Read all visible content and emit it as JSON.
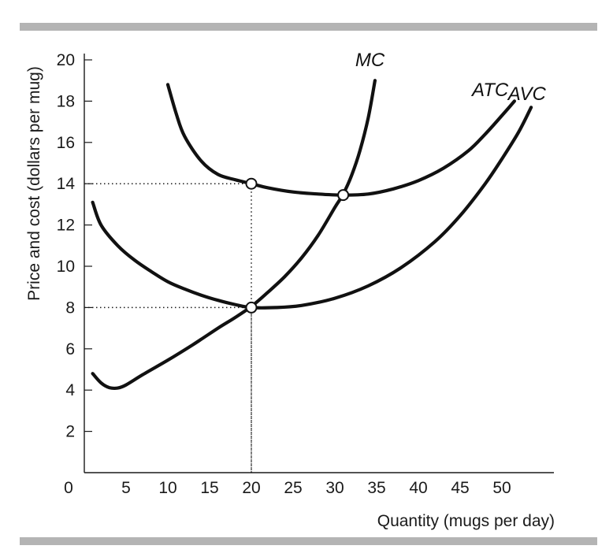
{
  "chart_data": {
    "type": "line",
    "xlabel": "Quantity (mugs per day)",
    "ylabel": "Price and cost (dollars per mug)",
    "origin_label": "0",
    "xlim": [
      0,
      56
    ],
    "ylim": [
      0,
      20
    ],
    "x_ticks": [
      {
        "value": 5,
        "label": "5"
      },
      {
        "value": 10,
        "label": "10"
      },
      {
        "value": 15,
        "label": "15"
      },
      {
        "value": 20,
        "label": "20"
      },
      {
        "value": 25,
        "label": "25"
      },
      {
        "value": 30,
        "label": "30"
      },
      {
        "value": 35,
        "label": "35"
      },
      {
        "value": 40,
        "label": "40"
      },
      {
        "value": 45,
        "label": "45"
      },
      {
        "value": 50,
        "label": "50"
      }
    ],
    "y_ticks": [
      {
        "value": 2,
        "label": "2"
      },
      {
        "value": 4,
        "label": "4"
      },
      {
        "value": 6,
        "label": "6"
      },
      {
        "value": 8,
        "label": "8"
      },
      {
        "value": 10,
        "label": "10"
      },
      {
        "value": 12,
        "label": "12"
      },
      {
        "value": 14,
        "label": "14"
      },
      {
        "value": 16,
        "label": "16"
      },
      {
        "value": 18,
        "label": "18"
      },
      {
        "value": 20,
        "label": "20"
      }
    ],
    "series": [
      {
        "name": "MC",
        "x": [
          1,
          2,
          3,
          4,
          5,
          7,
          10,
          13,
          16,
          18,
          20,
          22,
          24,
          26,
          28,
          30,
          31,
          32,
          33,
          34,
          34.8
        ],
        "y": [
          4.8,
          4.35,
          4.12,
          4.1,
          4.25,
          4.75,
          5.45,
          6.2,
          7.0,
          7.5,
          8.05,
          8.75,
          9.5,
          10.4,
          11.5,
          12.85,
          13.5,
          14.4,
          15.6,
          17.2,
          19.0
        ]
      },
      {
        "name": "ATC",
        "x": [
          10,
          11,
          12,
          14,
          16,
          18,
          20,
          22,
          25,
          28,
          31,
          34,
          37,
          40,
          43,
          46,
          48,
          50,
          51.5
        ],
        "y": [
          18.8,
          17.4,
          16.3,
          15.1,
          14.45,
          14.2,
          14.0,
          13.8,
          13.6,
          13.5,
          13.45,
          13.5,
          13.75,
          14.15,
          14.75,
          15.6,
          16.4,
          17.3,
          18.0
        ]
      },
      {
        "name": "AVC",
        "x": [
          1,
          2,
          4,
          6,
          8,
          10,
          12,
          14,
          16,
          18,
          20,
          23,
          26,
          30,
          34,
          38,
          42,
          45,
          48,
          50,
          52,
          53.5
        ],
        "y": [
          13.1,
          12.0,
          11.0,
          10.3,
          9.75,
          9.25,
          8.9,
          8.6,
          8.35,
          8.15,
          8.0,
          8.0,
          8.1,
          8.45,
          9.05,
          9.95,
          11.2,
          12.45,
          14.0,
          15.2,
          16.5,
          17.7
        ]
      }
    ],
    "labels": [
      {
        "text": "MC",
        "x": 34.2,
        "y": 19.7
      },
      {
        "text": "ATC",
        "x": 48.6,
        "y": 18.25
      },
      {
        "text": "AVC",
        "x": 53.0,
        "y": 18.05
      }
    ],
    "points": [
      {
        "x": 20,
        "y": 14
      },
      {
        "x": 31,
        "y": 13.45
      },
      {
        "x": 20,
        "y": 8
      }
    ],
    "guides": [
      {
        "x": 20,
        "y": 14
      },
      {
        "x": 20,
        "y": 8
      }
    ],
    "grid": false,
    "legend": "none"
  }
}
